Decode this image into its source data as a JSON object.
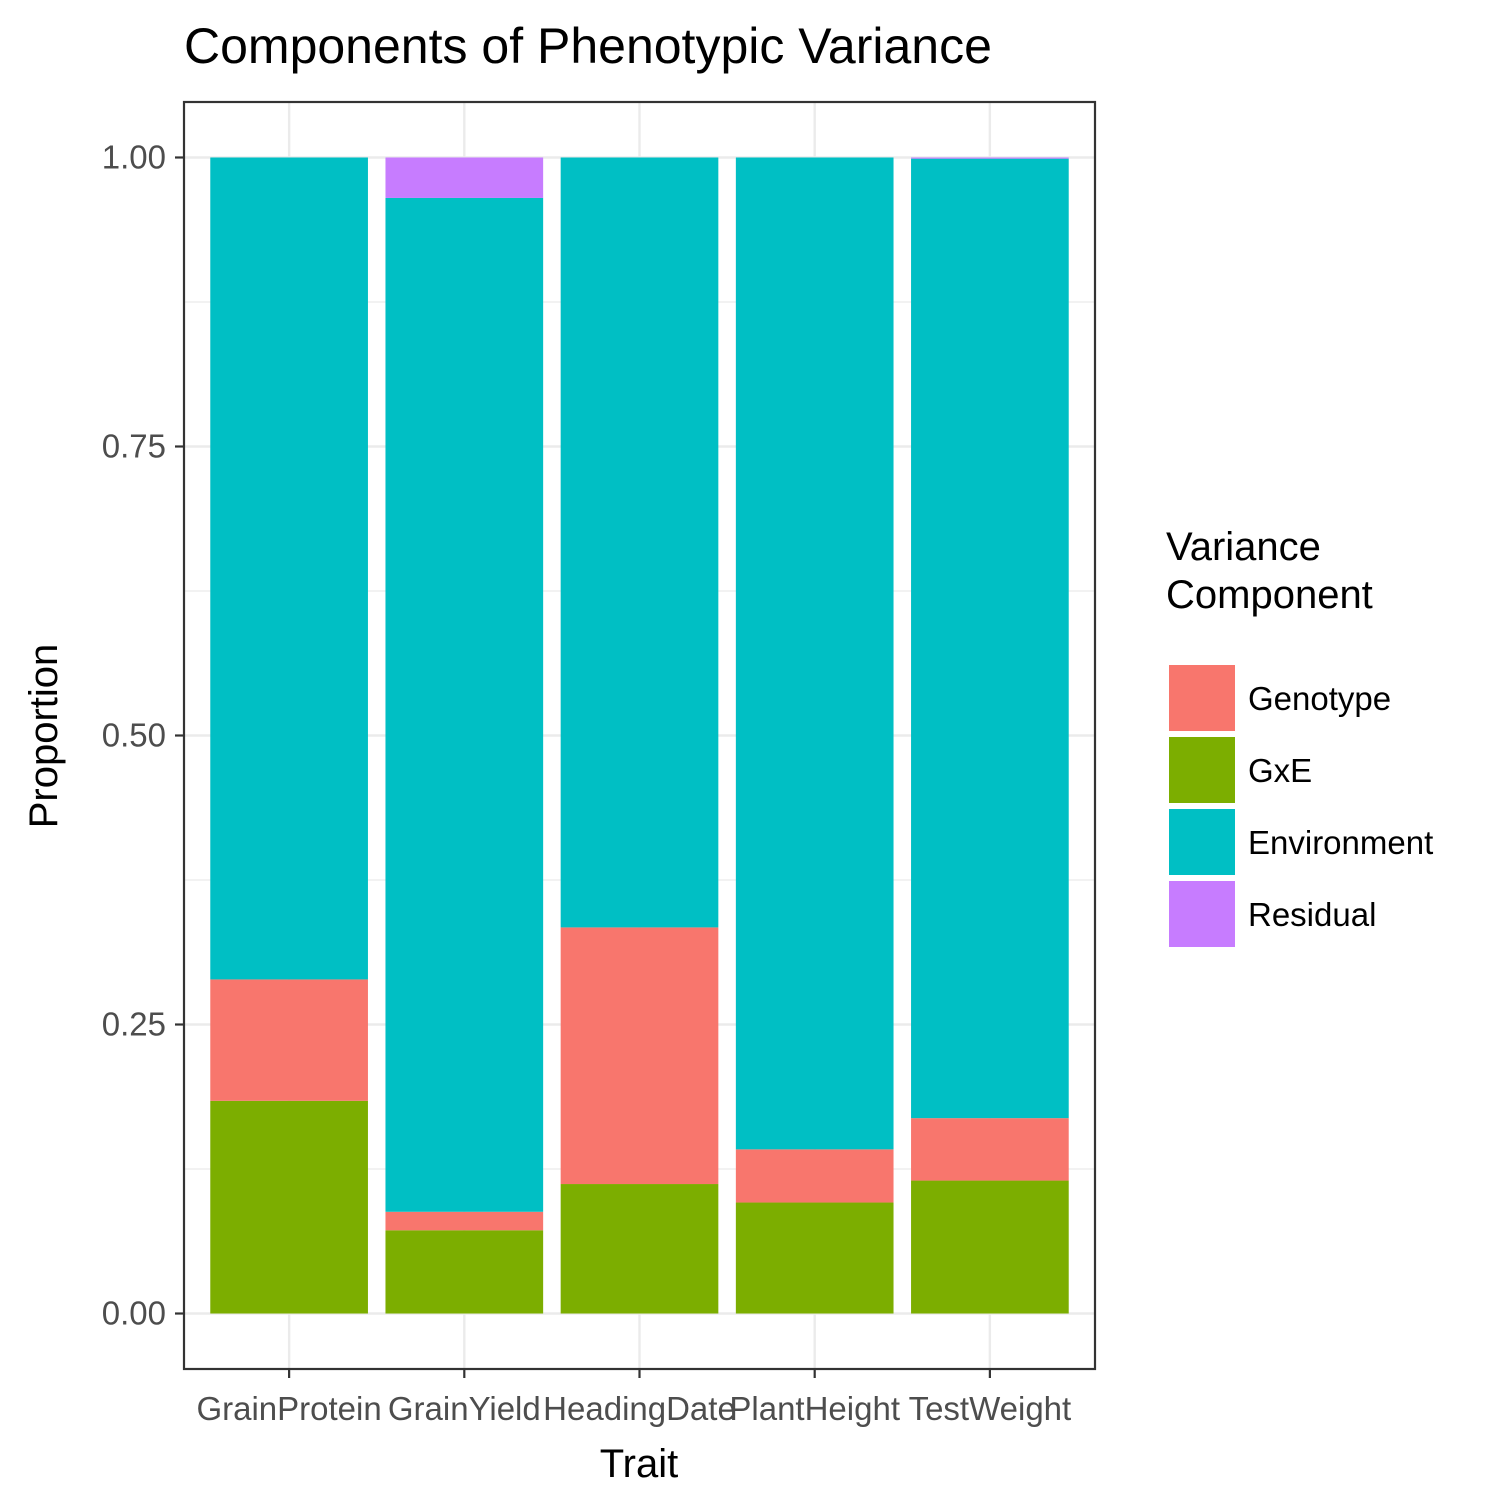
{
  "chart_data": {
    "type": "bar",
    "stacked": true,
    "title": "Components of Phenotypic Variance",
    "xlabel": "Trait",
    "ylabel": "Proportion",
    "categories": [
      "GrainProtein",
      "GrainYield",
      "HeadingDate",
      "PlantHeight",
      "TestWeight"
    ],
    "ylim": [
      -0.048,
      1.048
    ],
    "yticks": [
      0.0,
      0.25,
      0.5,
      0.75,
      1.0
    ],
    "ytick_labels": [
      "0.00",
      "0.25",
      "0.50",
      "0.75",
      "1.00"
    ],
    "grid": true,
    "legend": {
      "title_lines": [
        "Variance",
        "Component"
      ],
      "position": "right"
    },
    "series": [
      {
        "name": "GxE",
        "color": "#7CAE00",
        "values": [
          0.184,
          0.072,
          0.112,
          0.096,
          0.115
        ]
      },
      {
        "name": "Genotype",
        "color": "#F8766D",
        "values": [
          0.105,
          0.016,
          0.222,
          0.046,
          0.054
        ]
      },
      {
        "name": "Environment",
        "color": "#00BFC4",
        "values": [
          0.711,
          0.877,
          0.666,
          0.858,
          0.83
        ]
      },
      {
        "name": "Residual",
        "color": "#C77CFF",
        "values": [
          0.0,
          0.035,
          0.0,
          0.0,
          0.001
        ]
      }
    ],
    "legend_order": [
      "Genotype",
      "GxE",
      "Environment",
      "Residual"
    ]
  }
}
